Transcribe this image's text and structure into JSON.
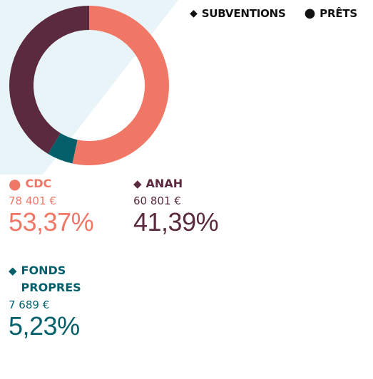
{
  "legend": [
    {
      "shape": "diamond",
      "label": "SUBVENTIONS"
    },
    {
      "shape": "circle",
      "label": "PRÊTS"
    }
  ],
  "colors": {
    "cdc": "#f07766",
    "anah": "#5b2a3e",
    "fonds": "#03606b",
    "background_wedge": "#e9f4f9"
  },
  "cards": [
    {
      "key": "cdc",
      "shape": "circle",
      "name": "CDC",
      "amount": "78 401 €",
      "percent": "53,37%"
    },
    {
      "key": "anah",
      "shape": "diamond",
      "name": "ANAH",
      "amount": "60 801 €",
      "percent": "41,39%"
    },
    {
      "key": "fonds",
      "shape": "diamond",
      "name": "FONDS PROPRES",
      "amount": "7 689 €",
      "percent": "5,23%"
    }
  ],
  "chart_data": {
    "type": "pie",
    "donut": true,
    "series": [
      {
        "name": "CDC",
        "value": 78401,
        "percent": 53.37,
        "color": "#f07766",
        "kind": "PRÊTS"
      },
      {
        "name": "FONDS PROPRES",
        "value": 7689,
        "percent": 5.23,
        "color": "#03606b",
        "kind": "SUBVENTIONS"
      },
      {
        "name": "ANAH",
        "value": 60801,
        "percent": 41.39,
        "color": "#5b2a3e",
        "kind": "SUBVENTIONS"
      }
    ],
    "start_angle_deg": 0,
    "direction": "clockwise",
    "legend": "top-right"
  }
}
